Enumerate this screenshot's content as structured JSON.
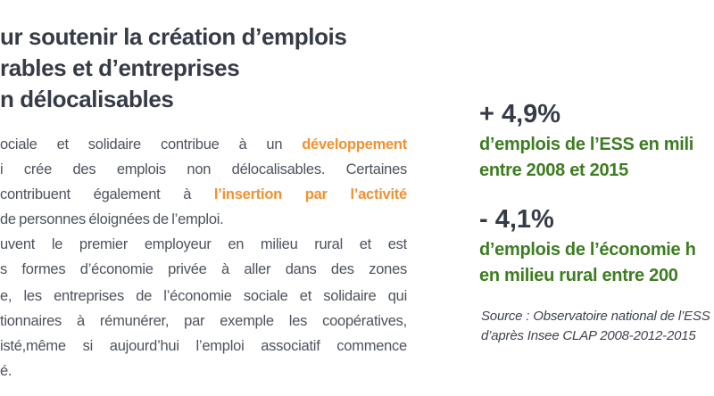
{
  "colors": {
    "background": "#ffffff",
    "heading_dark": "#363c47",
    "body_gray": "#4d535d",
    "accent_orange": "#f2912f",
    "accent_green": "#3e7d21",
    "source_gray": "#3e4450"
  },
  "heading": {
    "lines": [
      "ur soutenir la création d’emplois",
      "rables et d’entreprises",
      "n délocalisables"
    ]
  },
  "paragraph1": {
    "line1_pre": "ociale et solidaire contribue à un ",
    "line1_orange": "développement",
    "line2": "i crée des emplois non délocalisables. Certaines",
    "line3_pre": "contribuent également à ",
    "line3_orange": "l’insertion par l’activité",
    "line4": "de personnes éloignées de l’emploi.",
    "line5": "uvent le premier employeur en milieu rural et est",
    "line6": "s formes d’économie privée à aller dans des zones"
  },
  "paragraph2": {
    "line1": "e, les entreprises de l’économie sociale et solidaire qui",
    "line2": "tionnaires à rémunérer, par exemple les coopératives,",
    "line3": "isté,même si aujourd’hui l’emploi associatif commence",
    "line4": "é."
  },
  "stats": [
    {
      "value": "+ 4,9%",
      "desc_line1": "d’emplois de l’ESS en mili",
      "desc_line2": "entre 2008 et 2015"
    },
    {
      "value": "- 4,1%",
      "desc_line1": "d’emplois de l’économie h",
      "desc_line2": "en milieu rural entre 200"
    }
  ],
  "source": {
    "line1": "Source :  Observatoire national de l’ESS",
    "line2": "d’après Insee CLAP 2008-2012-2015"
  }
}
